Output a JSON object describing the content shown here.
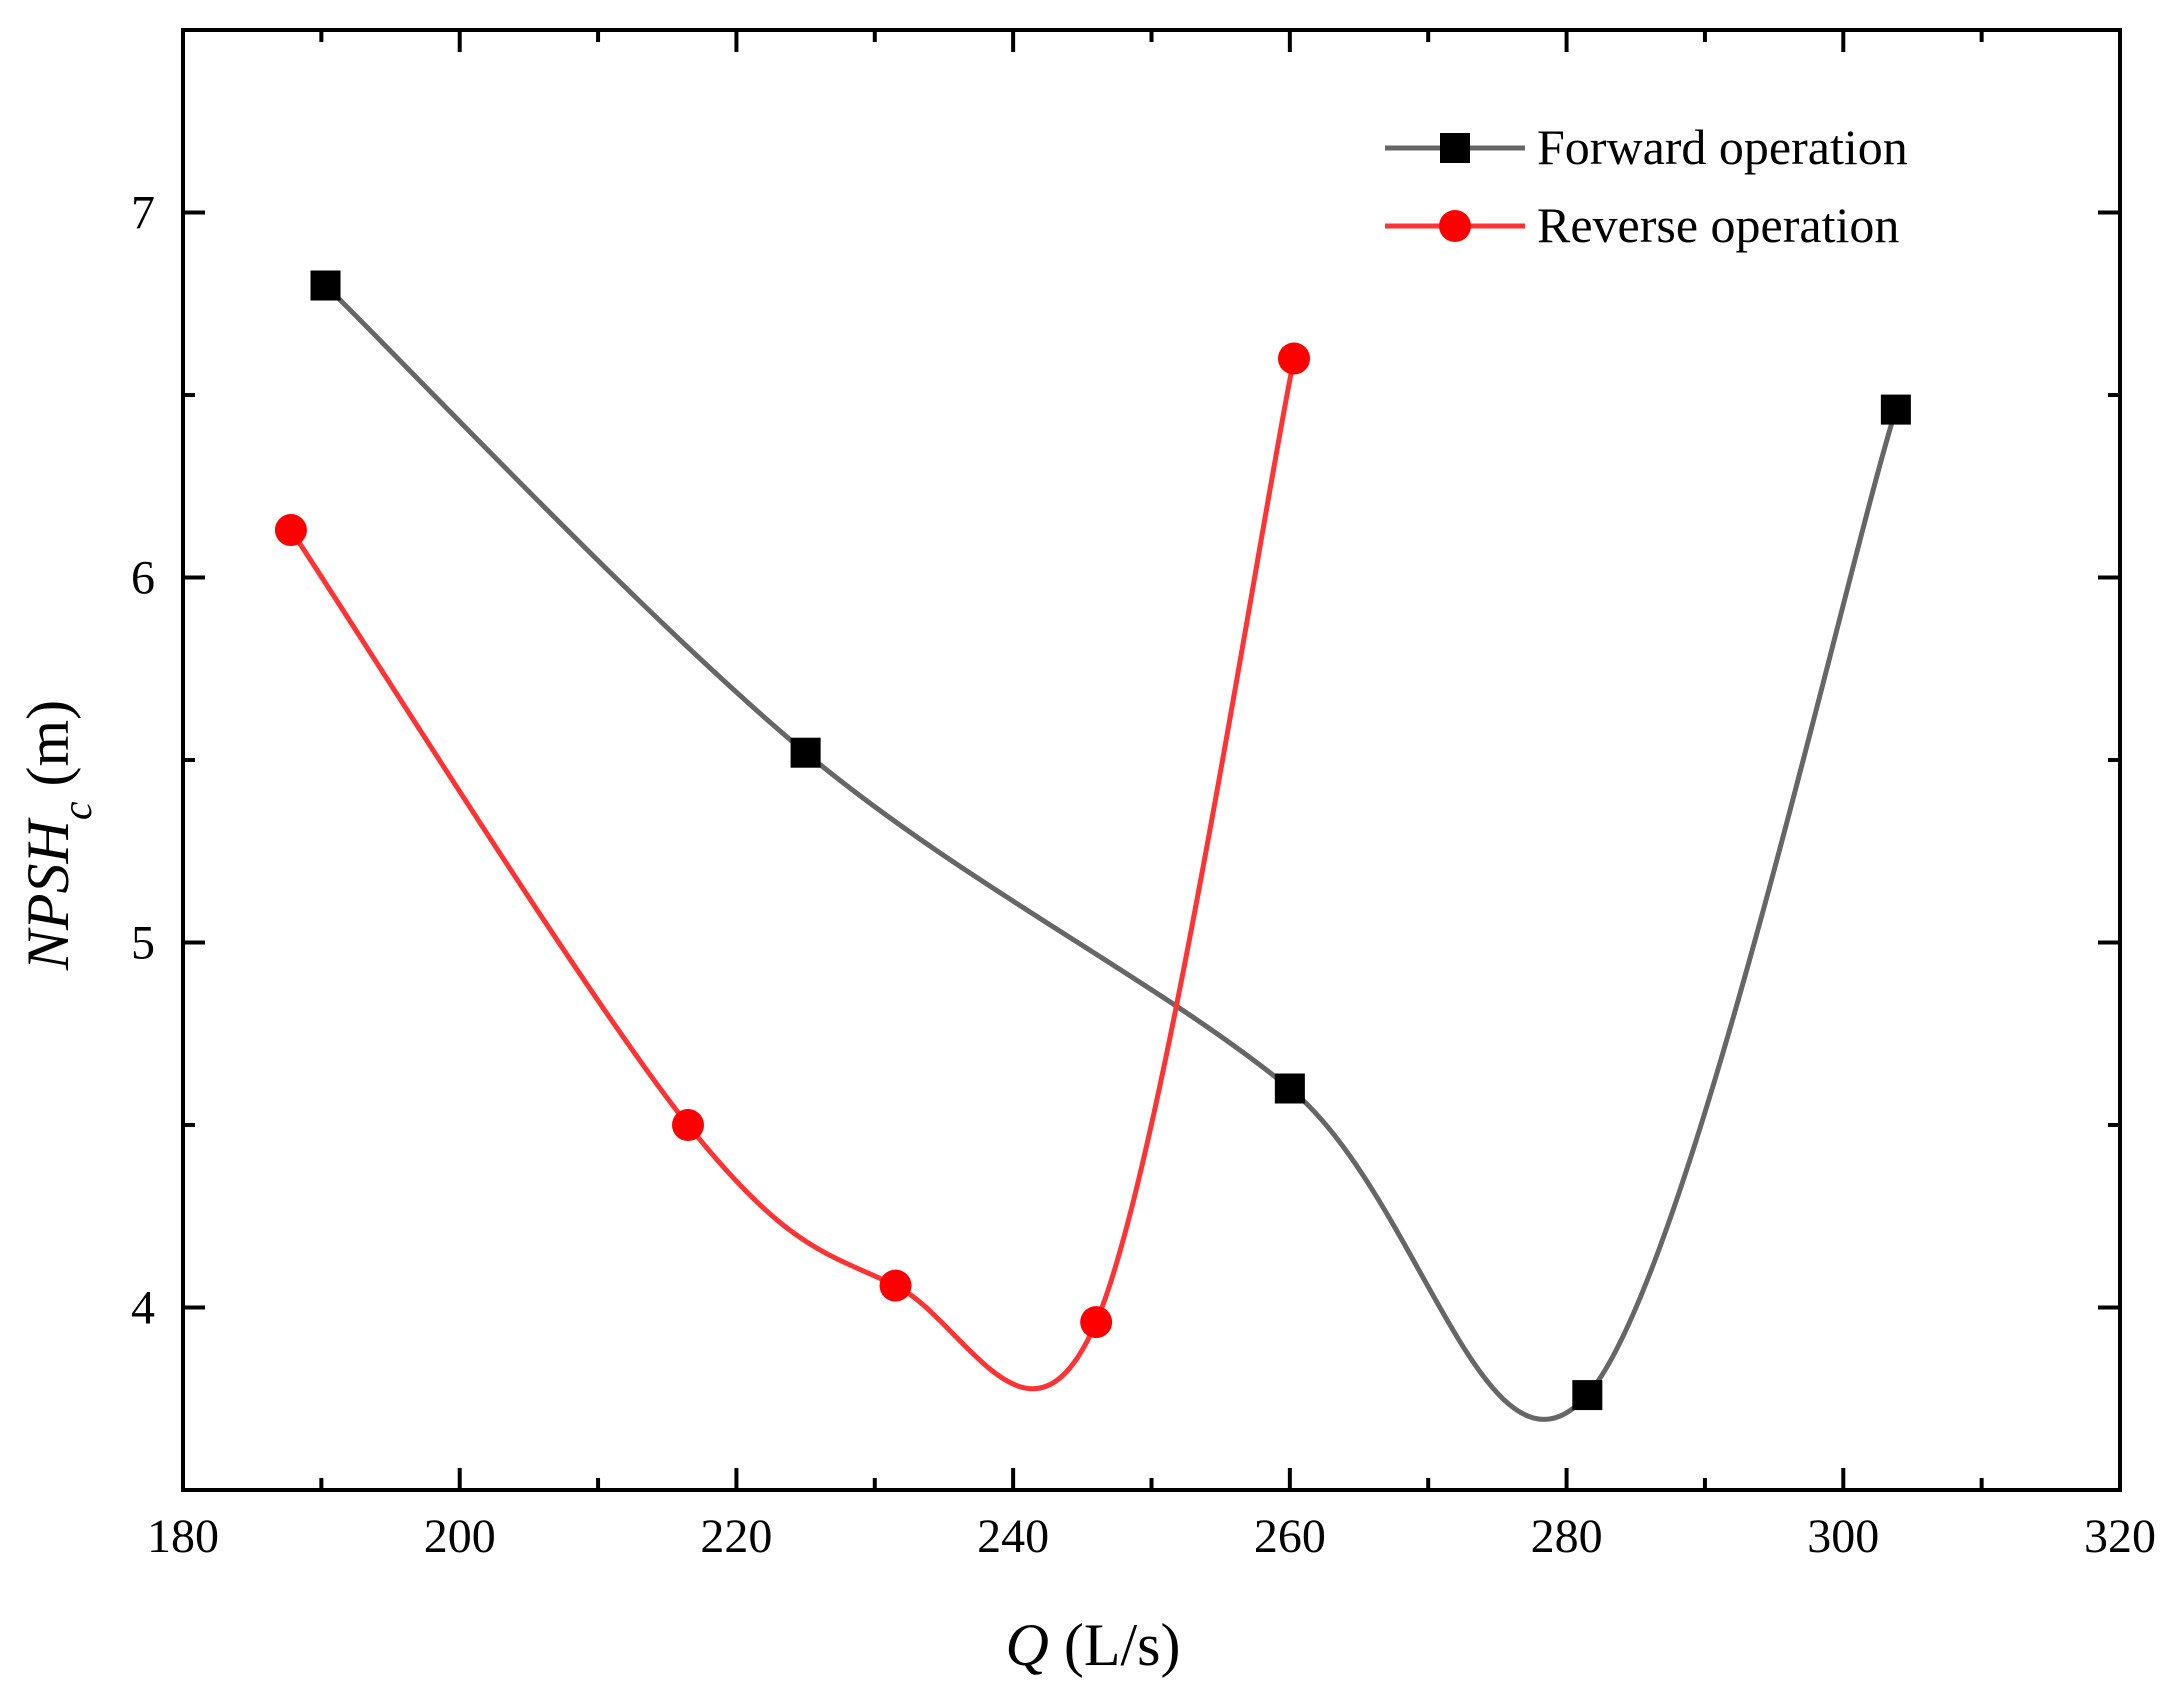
{
  "chart_data": {
    "type": "line",
    "title": "",
    "xlabel": {
      "symbol": "Q",
      "unit": " (L/s)"
    },
    "ylabel": {
      "symbol_main": "NPSH",
      "symbol_sub": "c",
      "unit": " (m)"
    },
    "xlim": [
      180,
      320
    ],
    "ylim": [
      3.5,
      7.5
    ],
    "x_ticks": [
      180,
      200,
      220,
      240,
      260,
      280,
      300,
      320
    ],
    "x_minor_ticks": [
      190,
      210,
      230,
      250,
      270,
      290,
      310
    ],
    "y_ticks": [
      4,
      5,
      6,
      7
    ],
    "y_minor_ticks": [
      4.5,
      5.5,
      6.5
    ],
    "grid": false,
    "legend_position": "top-right",
    "series": [
      {
        "name": "Forward operation",
        "marker": "square",
        "color": "#666666",
        "marker_color": "#000000",
        "x": [
          190.3,
          225.0,
          260.0,
          281.5,
          303.8
        ],
        "y": [
          6.8,
          5.52,
          4.6,
          3.76,
          6.46
        ]
      },
      {
        "name": "Reverse operation",
        "marker": "circle",
        "color": "#ff3333",
        "marker_color": "#ff0000",
        "x": [
          187.8,
          216.5,
          231.5,
          246.0,
          260.3
        ],
        "y": [
          6.13,
          4.5,
          4.06,
          3.96,
          6.6
        ]
      }
    ]
  }
}
